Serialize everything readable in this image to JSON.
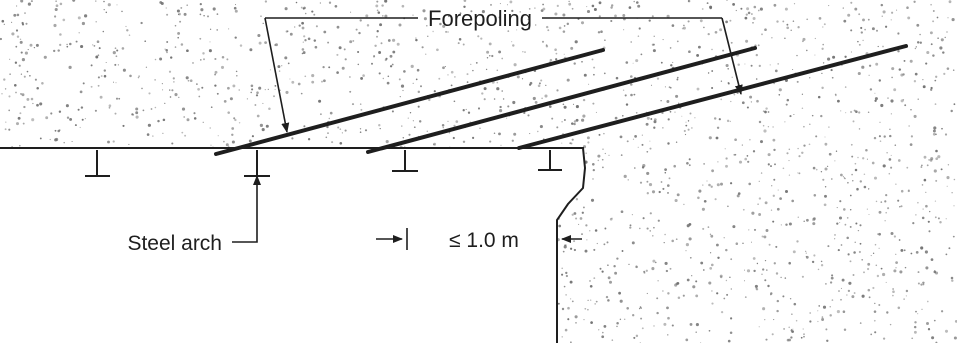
{
  "labels": {
    "forepoling": "Forepoling",
    "steel_arch": "Steel arch",
    "spacing": "≤ 1.0 m"
  },
  "colors": {
    "ink": "#1e1e1e",
    "soil_speckle": "#6e6e6e",
    "background": "#ffffff"
  }
}
